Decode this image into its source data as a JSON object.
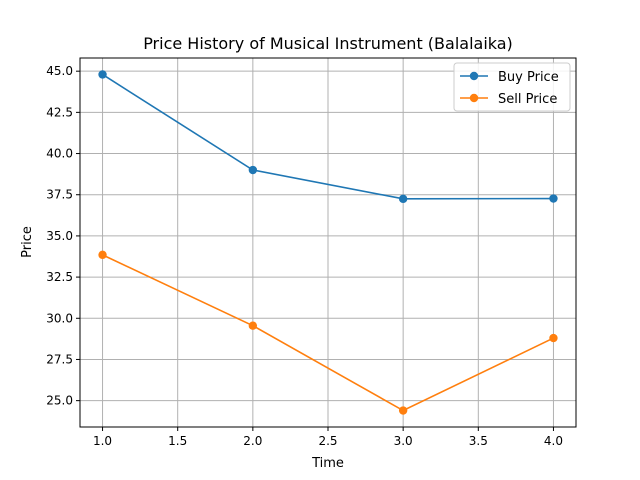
{
  "chart_data": {
    "type": "line",
    "title": "Price History of Musical Instrument (Balalaika)",
    "xlabel": "Time",
    "ylabel": "Price",
    "x": [
      1.0,
      2.0,
      3.0,
      4.0
    ],
    "xlim": [
      0.85,
      4.15
    ],
    "ylim": [
      23.4,
      45.8
    ],
    "xticks": [
      1.0,
      1.5,
      2.0,
      2.5,
      3.0,
      3.5,
      4.0
    ],
    "xtick_labels": [
      "1.0",
      "1.5",
      "2.0",
      "2.5",
      "3.0",
      "3.5",
      "4.0"
    ],
    "yticks": [
      25.0,
      27.5,
      30.0,
      32.5,
      35.0,
      37.5,
      40.0,
      42.5,
      45.0
    ],
    "ytick_labels": [
      "25.0",
      "27.5",
      "30.0",
      "32.5",
      "35.0",
      "37.5",
      "40.0",
      "42.5",
      "45.0"
    ],
    "grid": true,
    "legend_position": "top-right",
    "series": [
      {
        "name": "Buy Price",
        "color": "#1f77b4",
        "marker": "circle",
        "values": [
          44.8,
          39.0,
          37.25,
          37.27
        ]
      },
      {
        "name": "Sell Price",
        "color": "#ff7f0e",
        "marker": "circle",
        "values": [
          33.85,
          29.55,
          24.4,
          28.8
        ]
      }
    ]
  }
}
